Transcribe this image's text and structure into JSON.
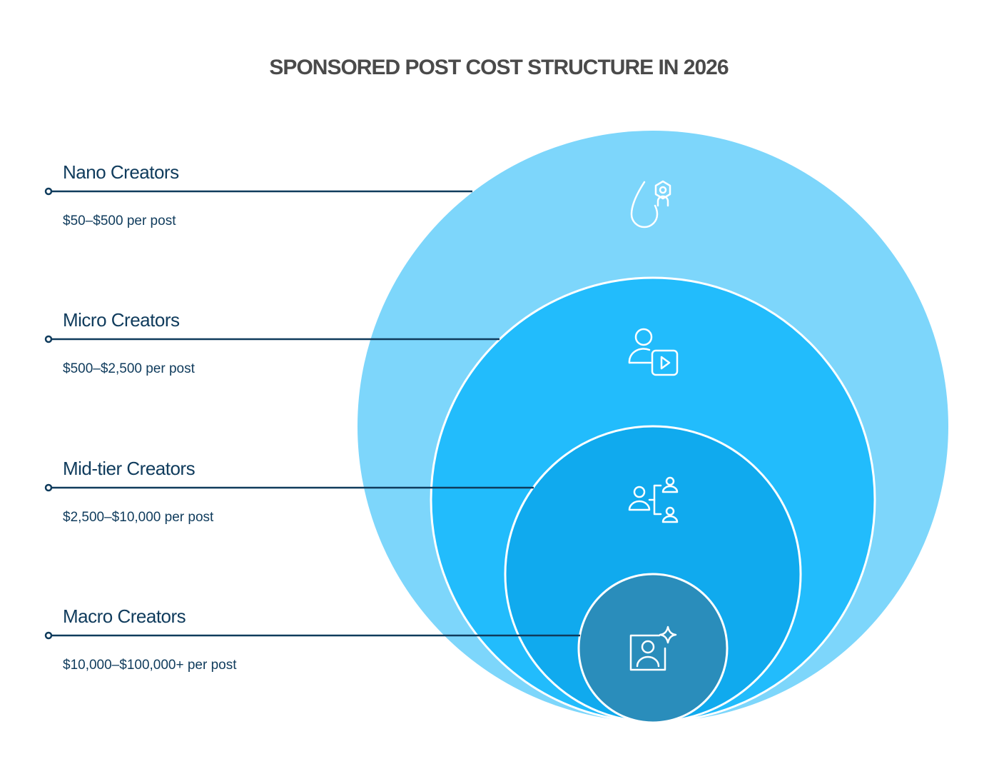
{
  "title": "SPONSORED POST COST STRUCTURE IN 2026",
  "tiers": [
    {
      "name": "Nano Creators",
      "price": "$50–$500 per post"
    },
    {
      "name": "Micro Creators",
      "price": "$500–$2,500 per post"
    },
    {
      "name": "Mid-tier Creators",
      "price": "$2,500–$10,000 per post"
    },
    {
      "name": "Macro Creators",
      "price": "$10,000–$100,000+ per post"
    }
  ]
}
